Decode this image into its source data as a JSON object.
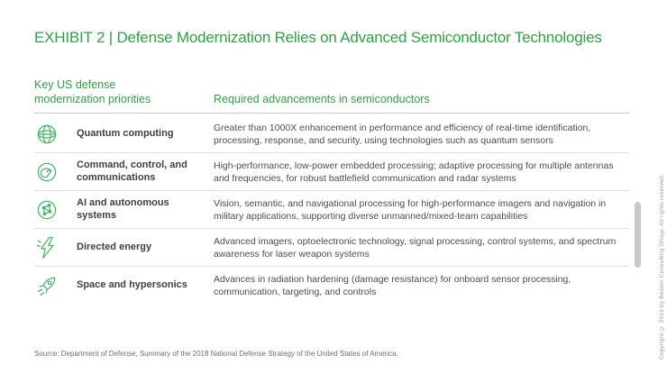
{
  "title": "EXHIBIT 2 | Defense Modernization Relies on Advanced Semiconductor Technologies",
  "table_headers": {
    "left": "Key US defense modernization priorities",
    "right": "Required advancements in semiconductors"
  },
  "rows": [
    {
      "icon": "quantum-globe-icon",
      "label": "Quantum computing",
      "description": "Greater than 1000X enhancement in performance and efficiency of real-time identification, processing, response, and security, using technologies such as quantum sensors"
    },
    {
      "icon": "spiral-communications-icon",
      "label": "Command, control, and communications",
      "description": "High-performance, low-power embedded processing; adaptive processing for multiple antennas and frequencies, for robust battlefield communication and radar systems"
    },
    {
      "icon": "ai-network-icon",
      "label": "AI and autonomous systems",
      "description": "Vision, semantic, and navigational processing for high-performance imagers and navigation in military applications, supporting diverse unmanned/mixed-team capabilities"
    },
    {
      "icon": "lightning-bolt-icon",
      "label": "Directed energy",
      "description": "Advanced imagers, optoelectronic technology, signal processing, control systems, and spectrum awareness for laser weapon systems"
    },
    {
      "icon": "rocket-icon",
      "label": "Space and hypersonics",
      "description": "Advances in radiation hardening (damage resistance) for onboard sensor processing, communication, targeting, and controls"
    }
  ],
  "source": "Source: Department of Defense, Summary of the 2018 National Defense Strategy of the United States of America.",
  "copyright": "Copyright © 2019 by Boston Consulting Group. All rights reserved.",
  "colors": {
    "accent_green": "#2da343",
    "icon_green": "#41b864",
    "label_text": "#3f3f3f",
    "body_text": "#4d4d4d",
    "divider": "#e0e0e0"
  }
}
